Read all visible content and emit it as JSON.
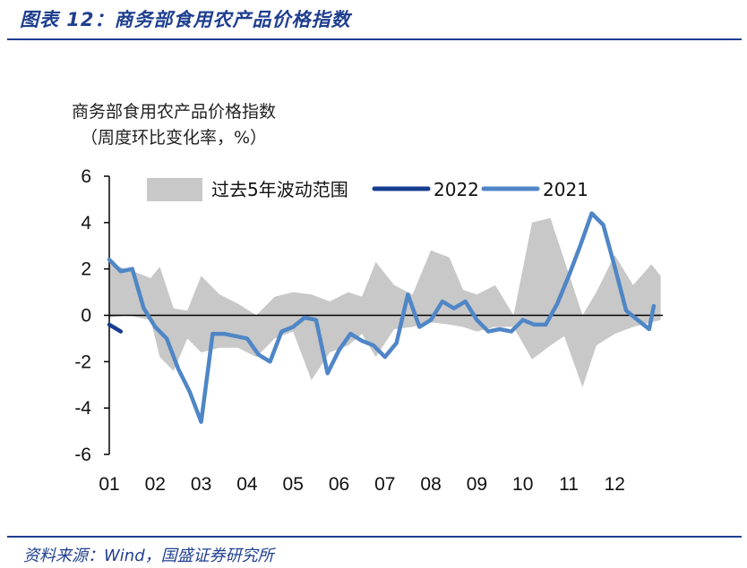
{
  "header": {
    "title": "图表 12：商务部食用农产品价格指数",
    "source": "资料来源：Wind，国盛证券研究所"
  },
  "chart_data": {
    "type": "line",
    "title_line1": "商务部食用农产品价格指数",
    "title_line2": "（周度环比变化率，%）",
    "ylim": [
      -6,
      6
    ],
    "yticks": [
      "6",
      "4",
      "2",
      "0",
      "-2",
      "-4",
      "-6"
    ],
    "xticks": [
      "01",
      "02",
      "03",
      "04",
      "05",
      "06",
      "07",
      "08",
      "09",
      "10",
      "11",
      "12"
    ],
    "x_unit": "month",
    "legend": {
      "range_label": "过去5年波动范围",
      "series_2022_label": "2022",
      "series_2021_label": "2021"
    },
    "colors": {
      "band": "#c8c8c8",
      "s2022": "#163d8f",
      "s2021": "#4f86c6",
      "axis": "#000000"
    },
    "band": {
      "x": [
        1.0,
        1.4,
        1.9,
        2.1,
        2.4,
        2.7,
        3.0,
        3.4,
        3.8,
        4.2,
        4.6,
        5.0,
        5.4,
        5.8,
        6.2,
        6.5,
        6.8,
        7.2,
        7.6,
        8.0,
        8.4,
        8.7,
        9.0,
        9.4,
        9.8,
        10.2,
        10.6,
        10.9,
        11.3,
        11.6,
        12.0,
        12.4,
        12.8,
        13.0
      ],
      "upper": [
        2.2,
        2.0,
        1.6,
        2.1,
        0.3,
        0.2,
        1.7,
        0.9,
        0.5,
        0.0,
        0.8,
        1.0,
        0.9,
        0.6,
        1.0,
        0.8,
        2.3,
        1.3,
        0.9,
        2.8,
        2.5,
        1.1,
        0.9,
        1.3,
        0.0,
        4.0,
        4.2,
        2.4,
        0.0,
        1.0,
        2.6,
        1.3,
        2.2,
        1.7
      ],
      "lower": [
        -0.1,
        0.0,
        -0.2,
        -1.8,
        -2.4,
        -1.0,
        -1.6,
        -1.4,
        -1.4,
        -1.8,
        -1.0,
        -0.7,
        -2.8,
        -1.6,
        -1.3,
        -0.8,
        -1.8,
        -0.6,
        -0.5,
        -0.3,
        -0.4,
        -0.5,
        -0.7,
        -0.5,
        -0.5,
        -1.9,
        -1.3,
        -0.9,
        -3.1,
        -1.3,
        -0.8,
        -0.5,
        -0.3,
        -0.2
      ]
    },
    "series_2021": {
      "x": [
        1.0,
        1.25,
        1.5,
        1.75,
        2.0,
        2.25,
        2.5,
        2.75,
        3.0,
        3.25,
        3.5,
        3.75,
        4.0,
        4.25,
        4.5,
        4.75,
        5.0,
        5.25,
        5.5,
        5.75,
        6.0,
        6.25,
        6.5,
        6.75,
        7.0,
        7.25,
        7.5,
        7.75,
        8.0,
        8.25,
        8.5,
        8.75,
        9.0,
        9.25,
        9.5,
        9.75,
        10.0,
        10.25,
        10.5,
        10.75,
        11.0,
        11.25,
        11.5,
        11.75,
        12.0,
        12.25,
        12.5,
        12.75,
        12.85
      ],
      "y": [
        2.4,
        1.9,
        2.0,
        0.3,
        -0.5,
        -1.0,
        -2.3,
        -3.3,
        -4.6,
        -0.8,
        -0.8,
        -0.9,
        -1.0,
        -1.7,
        -2.0,
        -0.7,
        -0.5,
        -0.1,
        -0.2,
        -2.5,
        -1.5,
        -0.8,
        -1.1,
        -1.3,
        -1.8,
        -1.2,
        0.9,
        -0.5,
        -0.2,
        0.6,
        0.3,
        0.6,
        -0.2,
        -0.7,
        -0.6,
        -0.7,
        -0.2,
        -0.4,
        -0.4,
        0.5,
        1.7,
        3.0,
        4.4,
        3.9,
        2.1,
        0.2,
        -0.2,
        -0.6,
        0.4
      ]
    },
    "series_2022": {
      "x": [
        1.0,
        1.25
      ],
      "y": [
        -0.4,
        -0.7
      ]
    }
  }
}
